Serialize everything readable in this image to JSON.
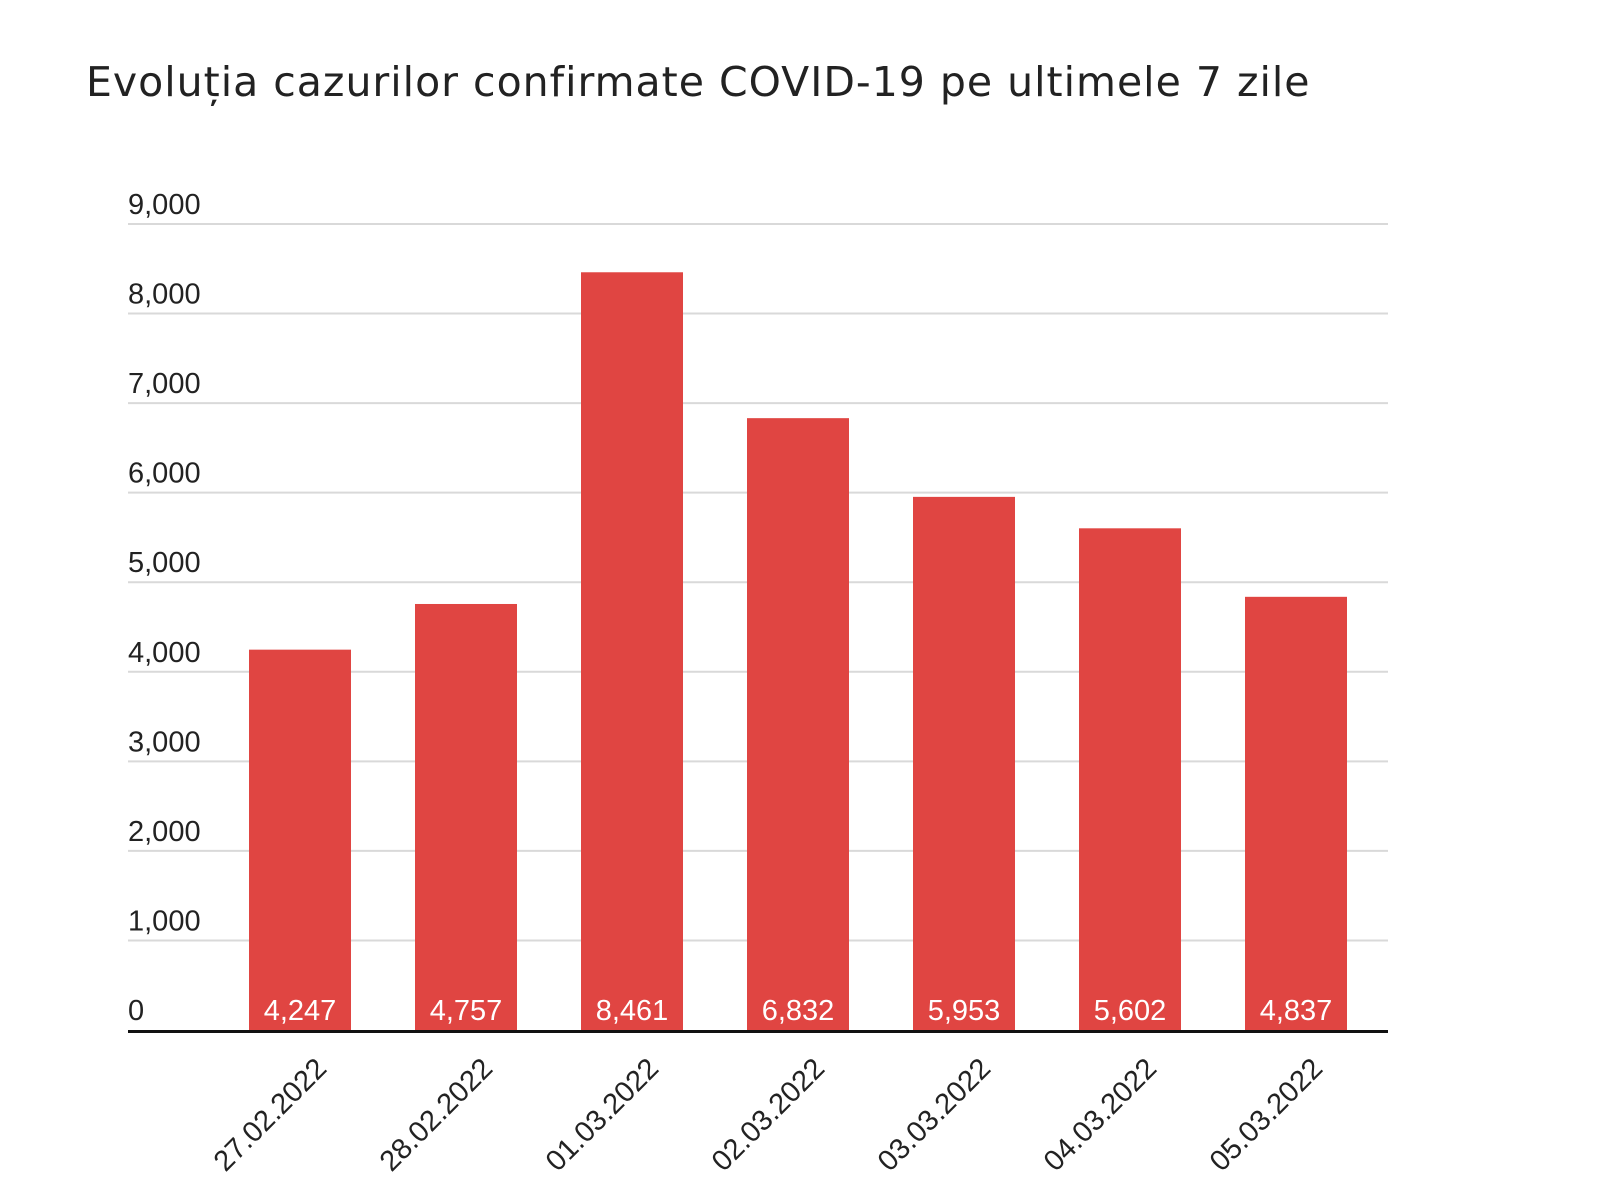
{
  "chart_data": {
    "type": "bar",
    "title": "Evoluția cazurilor confirmate COVID-19 pe ultimele 7 zile",
    "xlabel": "",
    "ylabel": "",
    "categories": [
      "27.02.2022",
      "28.02.2022",
      "01.03.2022",
      "02.03.2022",
      "03.03.2022",
      "04.03.2022",
      "05.03.2022"
    ],
    "values": [
      4247,
      4757,
      8461,
      6832,
      5953,
      5602,
      4837
    ],
    "data_labels": [
      "4,247",
      "4,757",
      "8,461",
      "6,832",
      "5,953",
      "5,602",
      "4,837"
    ],
    "ylim": [
      0,
      9000
    ],
    "yticks": [
      0,
      1000,
      2000,
      3000,
      4000,
      5000,
      6000,
      7000,
      8000,
      9000
    ],
    "ytick_labels": [
      "0",
      "1,000",
      "2,000",
      "3,000",
      "4,000",
      "5,000",
      "6,000",
      "7,000",
      "8,000",
      "9,000"
    ],
    "grid": true,
    "legend": "none",
    "colors": {
      "bar": "#e04542",
      "grid": "#d9d9d9",
      "axis": "#111111",
      "text": "#222222",
      "data_label": "#ffffff"
    }
  }
}
